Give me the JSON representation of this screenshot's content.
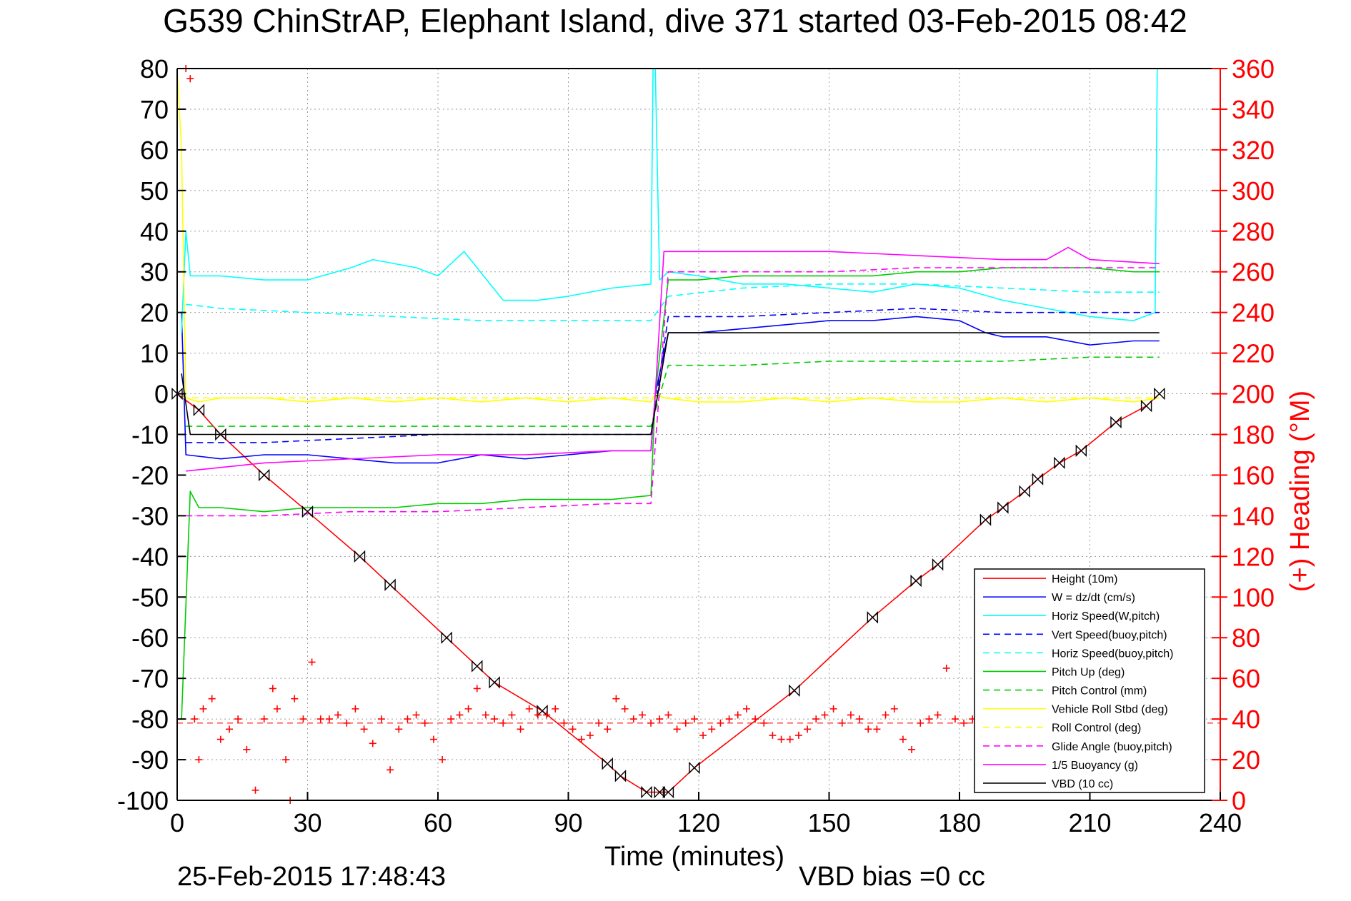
{
  "page": {
    "title": "G539 ChinStrAP, Elephant Island, dive 371 started 03-Feb-2015 08:42",
    "footer_timestamp": "25-Feb-2015 17:48:43",
    "footer_vbd_bias": "VBD bias =0 cc"
  },
  "colors": {
    "axis_left": "#000000",
    "axis_right": "#ff0000",
    "grid": "#9a9a9a",
    "height": "#ff0000",
    "w": "#0000ff",
    "horiz_speed": "#00ffff",
    "pitch": "#00cc00",
    "roll": "#ffff00",
    "glide": "#ff00ff",
    "vbd": "#000000",
    "heading": "#ff0000"
  },
  "chart_data": {
    "type": "line",
    "title": "G539 ChinStrAP, Elephant Island, dive 371 started 03-Feb-2015 08:42",
    "xlabel": "Time (minutes)",
    "ylabel": "",
    "y2label": "(+) Heading (°M)",
    "xlim": [
      0,
      240
    ],
    "ylim": [
      -100,
      80
    ],
    "y2lim": [
      0,
      360
    ],
    "xticks": [
      0,
      30,
      60,
      90,
      120,
      150,
      180,
      210,
      240
    ],
    "yticks": [
      80,
      70,
      60,
      50,
      40,
      30,
      20,
      10,
      0,
      -10,
      -20,
      -30,
      -40,
      -50,
      -60,
      -70,
      -80,
      -90,
      -100
    ],
    "y2ticks": [
      360,
      340,
      320,
      300,
      280,
      260,
      240,
      220,
      200,
      180,
      160,
      140,
      120,
      100,
      80,
      60,
      40,
      20,
      0
    ],
    "grid": true,
    "legend_position": "bottom-right",
    "series": [
      {
        "name": "Height (10m)",
        "style": "solid",
        "color_key": "height",
        "x": [
          0,
          5,
          10,
          20,
          30,
          42,
          49,
          62,
          69,
          73,
          84,
          99,
          102,
          108,
          111,
          113,
          119,
          142,
          160,
          170,
          175,
          186,
          190,
          195,
          198,
          203,
          208,
          216,
          223,
          226
        ],
        "y": [
          0,
          -4,
          -10,
          -20,
          -29,
          -40,
          -47,
          -60,
          -67,
          -71,
          -78,
          -91,
          -94,
          -98,
          -98,
          -98,
          -92,
          -73,
          -55,
          -46,
          -42,
          -31,
          -28,
          -24,
          -21,
          -17,
          -14,
          -7,
          -3,
          0
        ]
      },
      {
        "name": "W = dz/dt (cm/s)",
        "style": "solid",
        "color_key": "w",
        "x": [
          1,
          2,
          10,
          20,
          30,
          40,
          50,
          60,
          70,
          80,
          90,
          100,
          109,
          110,
          113,
          120,
          130,
          140,
          150,
          160,
          170,
          180,
          186,
          190,
          200,
          210,
          220,
          226
        ],
        "y": [
          20,
          -15,
          -16,
          -15,
          -15,
          -16,
          -17,
          -17,
          -15,
          -16,
          -15,
          -14,
          -14,
          0,
          15,
          15,
          16,
          17,
          18,
          18,
          19,
          18,
          15,
          14,
          14,
          12,
          13,
          13
        ]
      },
      {
        "name": "Horiz Speed(W,pitch)",
        "style": "solid",
        "color_key": "horiz_speed",
        "x": [
          1,
          2,
          3,
          10,
          20,
          30,
          40,
          45,
          55,
          60,
          66,
          75,
          83,
          90,
          100,
          109,
          109.5,
          110,
          111,
          113,
          120,
          130,
          140,
          150,
          160,
          170,
          180,
          190,
          200,
          210,
          220,
          225,
          225.5
        ],
        "y": [
          15,
          40,
          29,
          29,
          28,
          28,
          31,
          33,
          31,
          29,
          35,
          23,
          23,
          24,
          26,
          27,
          80,
          80,
          28,
          30,
          29,
          27,
          27,
          26,
          25,
          27,
          26,
          23,
          21,
          19,
          18,
          20,
          80
        ]
      },
      {
        "name": "Vert Speed(buoy,pitch)",
        "style": "dashed",
        "color_key": "w",
        "x": [
          2,
          20,
          40,
          60,
          80,
          100,
          109,
          113,
          130,
          150,
          170,
          190,
          210,
          226
        ],
        "y": [
          -12,
          -12,
          -11,
          -10,
          -10,
          -10,
          -10,
          19,
          19,
          20,
          21,
          20,
          20,
          20
        ]
      },
      {
        "name": "Horiz Speed(buoy,pitch)",
        "style": "dashed",
        "color_key": "horiz_speed",
        "x": [
          2,
          10,
          30,
          50,
          70,
          90,
          109,
          113,
          130,
          150,
          170,
          190,
          210,
          226
        ],
        "y": [
          22,
          21,
          20,
          19,
          18,
          18,
          18,
          24,
          26,
          27,
          27,
          26,
          25,
          25
        ]
      },
      {
        "name": "Pitch Up (deg)",
        "style": "solid",
        "color_key": "pitch",
        "x": [
          1,
          3,
          5,
          10,
          20,
          30,
          40,
          50,
          60,
          70,
          80,
          90,
          100,
          109,
          110,
          113,
          120,
          130,
          140,
          150,
          160,
          170,
          180,
          190,
          200,
          210,
          220,
          226
        ],
        "y": [
          -80,
          -24,
          -28,
          -28,
          -29,
          -28,
          -28,
          -28,
          -27,
          -27,
          -26,
          -26,
          -26,
          -25,
          0,
          28,
          28,
          29,
          29,
          29,
          29,
          30,
          30,
          31,
          31,
          31,
          30,
          30
        ]
      },
      {
        "name": "Pitch Control (mm)",
        "style": "dashed",
        "color_key": "pitch",
        "x": [
          2,
          30,
          60,
          90,
          109,
          113,
          130,
          150,
          170,
          190,
          210,
          226
        ],
        "y": [
          -8,
          -8,
          -8,
          -8,
          -8,
          7,
          7,
          8,
          8,
          8,
          9,
          9
        ]
      },
      {
        "name": "Vehicle Roll Stbd (deg)",
        "style": "solid",
        "color_key": "roll",
        "x": [
          0,
          1,
          2,
          5,
          10,
          20,
          30,
          40,
          50,
          60,
          70,
          80,
          90,
          100,
          109,
          110,
          112,
          120,
          130,
          140,
          150,
          160,
          170,
          180,
          190,
          200,
          210,
          220,
          226
        ],
        "y": [
          80,
          60,
          -1,
          -2,
          -1,
          -1,
          -2,
          -1,
          -2,
          -1,
          -2,
          -1,
          -2,
          -1,
          -2,
          0,
          -1,
          -2,
          -2,
          -1,
          -2,
          -1,
          -2,
          -2,
          -1,
          -2,
          -1,
          -2,
          -1
        ]
      },
      {
        "name": "Roll Control (deg)",
        "style": "dashed",
        "color_key": "roll",
        "x": [
          1,
          226
        ],
        "y": [
          -1,
          -1
        ]
      },
      {
        "name": "Glide Angle (buoy,pitch)",
        "style": "dashed",
        "color_key": "glide",
        "x": [
          2,
          5,
          20,
          40,
          60,
          80,
          100,
          109,
          113,
          130,
          150,
          170,
          190,
          210,
          226
        ],
        "y": [
          -30,
          -30,
          -30,
          -29,
          -29,
          -28,
          -27,
          -27,
          30,
          30,
          30,
          31,
          31,
          31,
          31
        ]
      },
      {
        "name": "1/5 Buoyancy (g)",
        "style": "solid",
        "color_key": "glide",
        "x": [
          2,
          20,
          40,
          60,
          80,
          100,
          109,
          110,
          112,
          113,
          130,
          150,
          170,
          190,
          200,
          205,
          210,
          226
        ],
        "y": [
          -19,
          -17,
          -16,
          -15,
          -15,
          -14,
          -14,
          0,
          35,
          35,
          35,
          35,
          34,
          33,
          33,
          36,
          33,
          32
        ]
      },
      {
        "name": "VBD (10 cc)",
        "style": "solid",
        "color_key": "vbd",
        "x": [
          1,
          3,
          109,
          113,
          226
        ],
        "y": [
          5,
          -10,
          -10,
          15,
          15
        ]
      }
    ],
    "heading_series": {
      "name": "(+) Heading (°M)",
      "marker": "+",
      "color_key": "heading",
      "axis": "right",
      "x": [
        2,
        3,
        4,
        5,
        6,
        8,
        10,
        12,
        14,
        16,
        18,
        20,
        22,
        23,
        25,
        26,
        27,
        29,
        31,
        33,
        35,
        37,
        39,
        41,
        43,
        45,
        47,
        49,
        51,
        53,
        55,
        57,
        59,
        61,
        63,
        65,
        67,
        69,
        71,
        73,
        75,
        77,
        79,
        81,
        83,
        85,
        87,
        89,
        91,
        93,
        95,
        97,
        99,
        101,
        103,
        105,
        107,
        109,
        111,
        113,
        115,
        117,
        119,
        121,
        123,
        125,
        127,
        129,
        131,
        133,
        135,
        137,
        139,
        141,
        143,
        145,
        147,
        149,
        151,
        153,
        155,
        157,
        159,
        161,
        163,
        165,
        167,
        169,
        171,
        173,
        175,
        177,
        179,
        181,
        183,
        185
      ],
      "y": [
        360,
        355,
        40,
        20,
        45,
        50,
        30,
        35,
        40,
        25,
        5,
        40,
        55,
        45,
        20,
        0,
        50,
        40,
        68,
        40,
        40,
        42,
        38,
        45,
        35,
        28,
        40,
        15,
        35,
        40,
        42,
        38,
        30,
        20,
        40,
        42,
        45,
        55,
        42,
        40,
        38,
        42,
        35,
        45,
        42,
        42,
        45,
        38,
        35,
        30,
        32,
        38,
        35,
        50,
        45,
        40,
        42,
        38,
        40,
        42,
        35,
        38,
        40,
        32,
        35,
        38,
        40,
        42,
        45,
        40,
        38,
        32,
        30,
        30,
        32,
        35,
        40,
        42,
        45,
        38,
        42,
        40,
        35,
        35,
        42,
        45,
        30,
        25,
        38,
        40,
        42,
        65,
        40,
        38,
        40,
        42
      ]
    },
    "heading_reference": {
      "name": "Heading reference",
      "style": "dashed",
      "color_key": "heading",
      "axis": "right",
      "value": 38
    },
    "legend_entries": [
      "Height (10m)",
      "W = dz/dt (cm/s)",
      "Horiz Speed(W,pitch)",
      "Vert Speed(buoy,pitch)",
      "Horiz Speed(buoy,pitch)",
      "Pitch Up (deg)",
      "Pitch Control (mm)",
      "Vehicle Roll Stbd (deg)",
      "Roll Control (deg)",
      "Glide Angle (buoy,pitch)",
      "1/5 Buoyancy (g)",
      "VBD (10 cc)"
    ]
  }
}
